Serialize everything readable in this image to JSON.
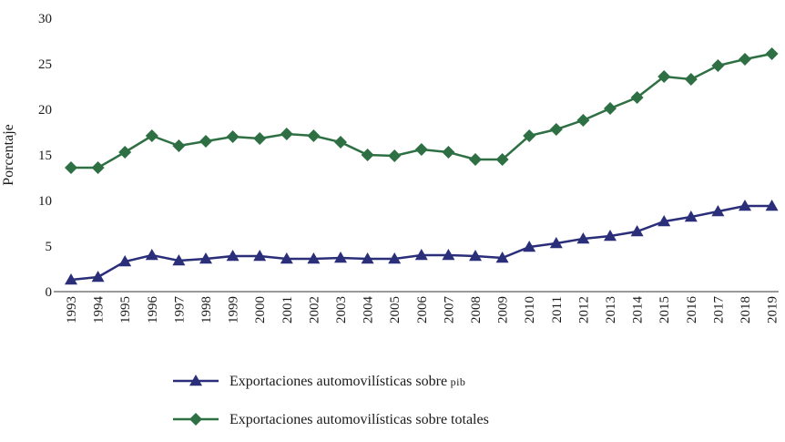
{
  "chart_data": {
    "type": "line",
    "title": "",
    "xlabel": "",
    "ylabel": "Porcentaje",
    "ylim": [
      0,
      30
    ],
    "yticks": [
      0,
      5,
      10,
      15,
      20,
      25,
      30
    ],
    "grid": false,
    "legend_position": "bottom-left",
    "categories": [
      "1993",
      "1994",
      "1995",
      "1996",
      "1997",
      "1998",
      "1999",
      "2000",
      "2001",
      "2002",
      "2003",
      "2004",
      "2005",
      "2006",
      "2007",
      "2008",
      "2009",
      "2010",
      "2011",
      "2012",
      "2013",
      "2014",
      "2015",
      "2016",
      "2017",
      "2018",
      "2019"
    ],
    "series": [
      {
        "name": "Exportaciones automovilísticas sobre",
        "name_suffix": "pib",
        "color": "#2b2f7a",
        "marker": "triangle",
        "values": [
          1.3,
          1.6,
          3.3,
          4.0,
          3.4,
          3.6,
          3.9,
          3.9,
          3.6,
          3.6,
          3.7,
          3.6,
          3.6,
          4.0,
          4.0,
          3.9,
          3.7,
          4.9,
          5.3,
          5.8,
          6.1,
          6.6,
          7.7,
          8.2,
          8.8,
          9.4,
          9.4
        ]
      },
      {
        "name": "Exportaciones automovilísticas sobre totales",
        "name_suffix": "",
        "color": "#2e7043",
        "marker": "diamond",
        "values": [
          13.6,
          13.6,
          15.3,
          17.1,
          16.0,
          16.5,
          17.0,
          16.8,
          17.3,
          17.1,
          16.4,
          15.0,
          14.9,
          15.6,
          15.3,
          14.5,
          14.5,
          17.1,
          17.8,
          18.8,
          20.1,
          21.3,
          23.6,
          23.3,
          24.8,
          25.5,
          26.1
        ]
      }
    ]
  }
}
